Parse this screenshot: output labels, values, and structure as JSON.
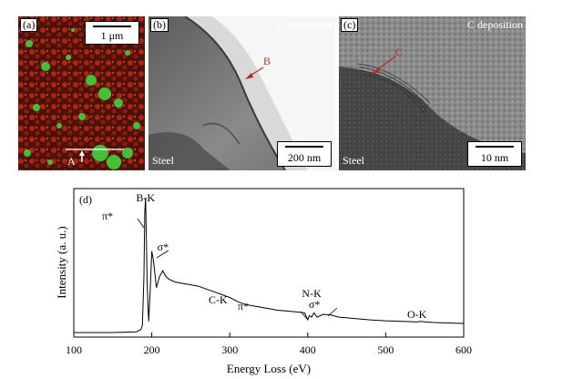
{
  "panels": {
    "a": {
      "label": "(a)",
      "scale": "1 μm",
      "marker": "A"
    },
    "b": {
      "label": "(b)",
      "top_text": "C deposition",
      "bottom_text": "Steel",
      "marker": "B",
      "scale": "200 nm"
    },
    "c": {
      "label": "(c)",
      "top_text": "C deposition",
      "bottom_text": "Steel",
      "marker": "C",
      "scale": "10 nm"
    }
  },
  "chart_data": {
    "type": "line",
    "panel_label": "(d)",
    "xlabel": "Energy Loss (eV)",
    "ylabel": "Intensity (a. u.)",
    "xlim": [
      100,
      600
    ],
    "xticks": [
      100,
      200,
      300,
      400,
      500,
      600
    ],
    "annotations": [
      {
        "text": "B-K",
        "x": 192
      },
      {
        "text": "π*",
        "x": 190
      },
      {
        "text": "σ*",
        "x": 205
      },
      {
        "text": "C-K",
        "x": 285
      },
      {
        "text": "π*",
        "x": 399
      },
      {
        "text": "N-K",
        "x": 405
      },
      {
        "text": "σ*",
        "x": 432
      },
      {
        "text": "O-K",
        "x": 540
      }
    ],
    "series": [
      {
        "x": [
          100,
          150,
          160,
          170,
          180,
          186,
          188,
          190,
          191,
          192,
          193,
          194,
          196,
          198,
          200,
          202,
          206,
          210,
          214,
          218,
          222,
          230,
          240,
          250,
          260,
          270,
          280,
          290,
          295,
          300,
          310,
          320,
          330,
          340,
          350,
          360,
          370,
          380,
          390,
          396,
          400,
          402,
          405,
          408,
          412,
          420,
          430,
          440,
          450,
          460,
          470,
          480,
          490,
          500,
          510,
          520,
          530,
          540,
          545,
          550,
          560,
          570,
          580,
          590,
          600
        ],
        "y": [
          0,
          0,
          0.2,
          0.3,
          0.5,
          2,
          5,
          40,
          85,
          96,
          70,
          35,
          8,
          30,
          58,
          52,
          32,
          40,
          44,
          40,
          38,
          36,
          35,
          34,
          33,
          31,
          29,
          27,
          26,
          25,
          22,
          20,
          19,
          18,
          17,
          16,
          15.5,
          15,
          14.5,
          14,
          9,
          12,
          11,
          14,
          11,
          13,
          12.5,
          11,
          10.5,
          10,
          9.5,
          9,
          8.7,
          8.4,
          8.2,
          8,
          7.8,
          7.5,
          8,
          7.6,
          7.2,
          7,
          6.8,
          6.6,
          6.5
        ]
      }
    ]
  }
}
